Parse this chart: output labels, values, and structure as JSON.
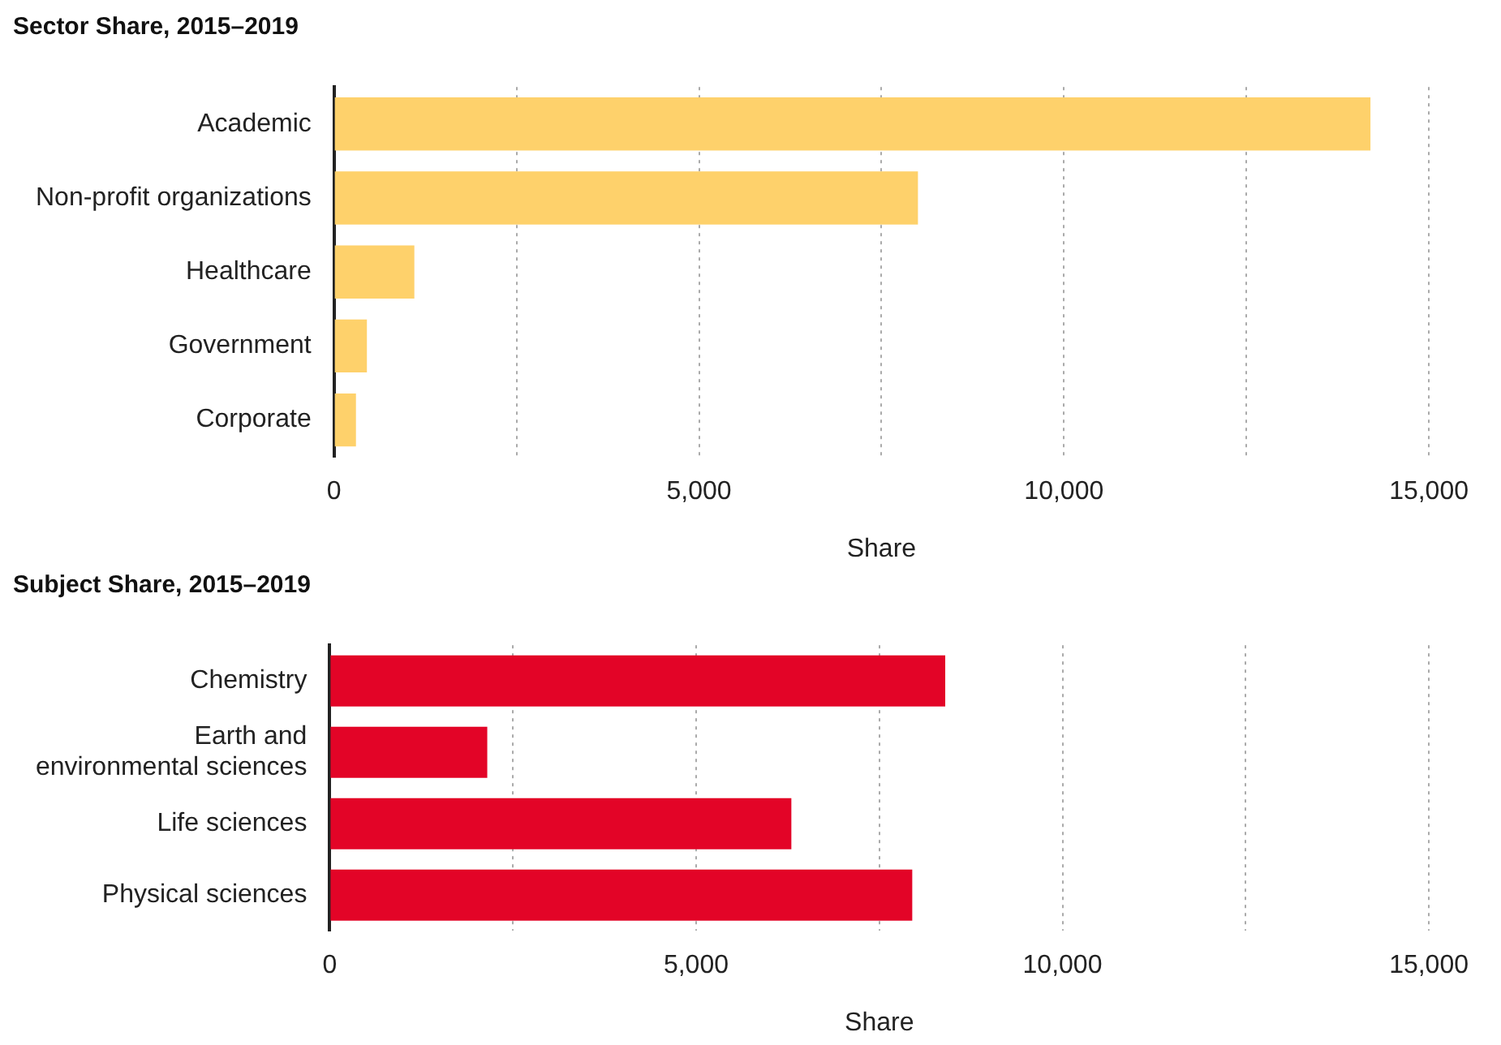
{
  "chart_data": [
    {
      "type": "bar",
      "orientation": "horizontal",
      "title": "Sector Share, 2015–2019",
      "xlabel": "Share",
      "categories": [
        "Academic",
        "Non-profit organizations",
        "Healthcare",
        "Government",
        "Corporate"
      ],
      "values": [
        14200,
        8000,
        1100,
        450,
        300
      ],
      "color": "#fed16b",
      "xlim": [
        0,
        15000
      ],
      "xticks": [
        0,
        {
          "value": 2500,
          "label": null
        },
        "5,000",
        {
          "value": 7500,
          "label": null
        },
        {
          "value": 10000,
          "label": "10,000"
        },
        {
          "value": 12500,
          "label": null
        },
        {
          "value": 15000,
          "label": "15,000"
        }
      ],
      "grid": "x"
    },
    {
      "type": "bar",
      "orientation": "horizontal",
      "title": "Subject Share, 2015–2019",
      "xlabel": "Share",
      "categories": [
        "Chemistry",
        "Earth and\nenvironmental sciences",
        "Life sciences",
        "Physical sciences"
      ],
      "values": [
        8400,
        2150,
        6300,
        7950
      ],
      "color": "#e30427",
      "xlim": [
        0,
        15000
      ],
      "xticks": [
        0,
        {
          "value": 2500,
          "label": null
        },
        {
          "value": 5000,
          "label": "5,000"
        },
        {
          "value": 7500,
          "label": null
        },
        {
          "value": 10000,
          "label": "10,000"
        },
        {
          "value": 12500,
          "label": null
        },
        {
          "value": 15000,
          "label": "15,000"
        }
      ],
      "grid": "x"
    }
  ]
}
